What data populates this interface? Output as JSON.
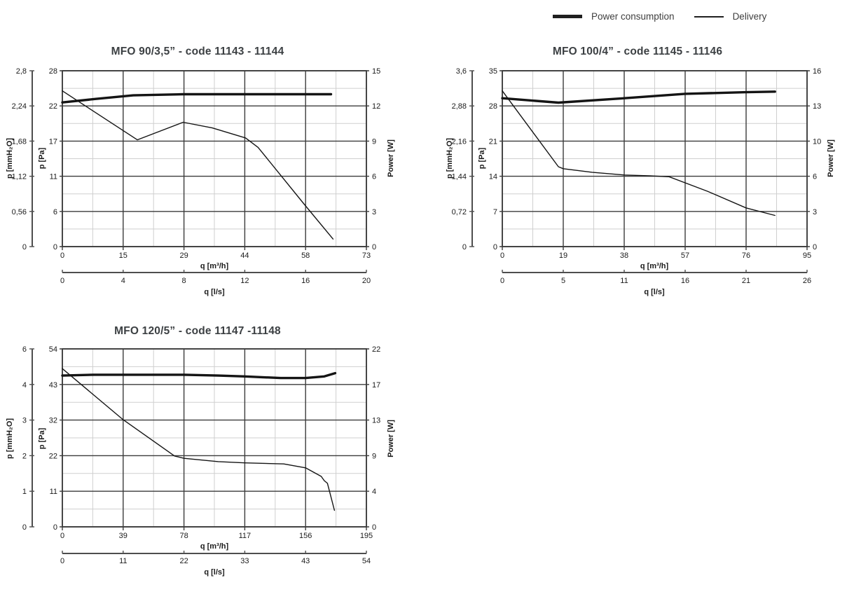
{
  "legend": {
    "items": [
      {
        "label": "Power consumption",
        "style": "thick"
      },
      {
        "label": "Delivery",
        "style": "thin"
      }
    ]
  },
  "colors": {
    "curve": "#141414",
    "grid_major": "#3b3b3b",
    "grid_minor": "#cfcfcf",
    "axis": "#4d4d4d",
    "text": "#1a1a1a",
    "title": "#3c4043"
  },
  "chart_data": [
    {
      "type": "line",
      "title": "MFO 90/3,5” - code 11143 - 11144",
      "x_axes": {
        "m3h": {
          "label": "q [m³/h]",
          "ticks": [
            "0",
            "15",
            "29",
            "44",
            "58",
            "73"
          ],
          "max": 73
        },
        "ls": {
          "label": "q [l/s]",
          "ticks": [
            "0",
            "4",
            "8",
            "12",
            "16",
            "20"
          ],
          "max": 20
        }
      },
      "y_axes": {
        "mmh2o": {
          "label": "p [mmH₂O]",
          "ticks": [
            "0",
            "0,56",
            "1,12",
            "1,68",
            "2,24",
            "2,8"
          ],
          "max": 2.8
        },
        "pa": {
          "label": "p [Pa]",
          "ticks": [
            "0",
            "6",
            "11",
            "17",
            "22",
            "28"
          ],
          "max": 28
        },
        "power": {
          "label": "Power [W]",
          "ticks": [
            "0",
            "3",
            "6",
            "9",
            "12",
            "15"
          ],
          "max": 15
        }
      },
      "series": [
        {
          "name": "Power consumption",
          "y_axis": "power",
          "style": "thick",
          "points": [
            [
              0,
              12.3
            ],
            [
              8,
              12.6
            ],
            [
              17,
              12.9
            ],
            [
              29,
              13.0
            ],
            [
              44,
              13.0
            ],
            [
              58,
              13.0
            ],
            [
              64.5,
              13.0
            ]
          ]
        },
        {
          "name": "Delivery",
          "y_axis": "pa",
          "style": "thin",
          "points": [
            [
              0,
              24.8
            ],
            [
              18,
              17.0
            ],
            [
              29,
              19.8
            ],
            [
              36,
              18.9
            ],
            [
              44,
              17.3
            ],
            [
              47,
              15.8
            ],
            [
              58,
              6.8
            ],
            [
              65,
              1.2
            ]
          ]
        }
      ]
    },
    {
      "type": "line",
      "title": "MFO 100/4” - code 11145 - 11146",
      "x_axes": {
        "m3h": {
          "label": "q [m³/h]",
          "ticks": [
            "0",
            "19",
            "38",
            "57",
            "76",
            "95"
          ],
          "max": 95
        },
        "ls": {
          "label": "q [l/s]",
          "ticks": [
            "0",
            "5",
            "11",
            "16",
            "21",
            "26"
          ],
          "max": 26
        }
      },
      "y_axes": {
        "mmh2o": {
          "label": "p [mmH₂O]",
          "ticks": [
            "0",
            "0,72",
            "1,44",
            "2,16",
            "2,88",
            "3,6"
          ],
          "max": 3.6
        },
        "pa": {
          "label": "p [Pa]",
          "ticks": [
            "0",
            "7",
            "14",
            "21",
            "28",
            "35"
          ],
          "max": 35
        },
        "power": {
          "label": "Power [W]",
          "ticks": [
            "0",
            "3",
            "6",
            "10",
            "13",
            "16"
          ],
          "max": 16
        }
      },
      "series": [
        {
          "name": "Power consumption",
          "y_axis": "power",
          "style": "thick",
          "points": [
            [
              0,
              13.5
            ],
            [
              17.5,
              13.1
            ],
            [
              38,
              13.5
            ],
            [
              57,
              13.9
            ],
            [
              76,
              14.05
            ],
            [
              85,
              14.1
            ]
          ]
        },
        {
          "name": "Delivery",
          "y_axis": "pa",
          "style": "thin",
          "points": [
            [
              0,
              31
            ],
            [
              17.5,
              15.9
            ],
            [
              19,
              15.5
            ],
            [
              28,
              14.8
            ],
            [
              38,
              14.25
            ],
            [
              46,
              14.1
            ],
            [
              52,
              13.9
            ],
            [
              64,
              11.0
            ],
            [
              76,
              7.7
            ],
            [
              85,
              6.2
            ]
          ]
        }
      ]
    },
    {
      "type": "line",
      "title": "MFO 120/5” - code 11147 -11148",
      "x_axes": {
        "m3h": {
          "label": "q [m³/h]",
          "ticks": [
            "0",
            "39",
            "78",
            "117",
            "156",
            "195"
          ],
          "max": 195
        },
        "ls": {
          "label": "q [l/s]",
          "ticks": [
            "0",
            "11",
            "22",
            "33",
            "43",
            "54"
          ],
          "max": 54
        }
      },
      "y_axes": {
        "mmh2o": {
          "label": "p [mmH₂O]",
          "ticks": [
            "0",
            "1",
            "2",
            "3",
            "4",
            "6"
          ],
          "max": 5.5
        },
        "pa": {
          "label": "p [Pa]",
          "ticks": [
            "0",
            "11",
            "22",
            "32",
            "43",
            "54"
          ],
          "max": 54
        },
        "power": {
          "label": "Power [W]",
          "ticks": [
            "0",
            "4",
            "9",
            "13",
            "17",
            "22"
          ],
          "max": 22
        }
      },
      "series": [
        {
          "name": "Power consumption",
          "y_axis": "power",
          "style": "thick",
          "points": [
            [
              0,
              18.7
            ],
            [
              20,
              18.8
            ],
            [
              39,
              18.8
            ],
            [
              78,
              18.8
            ],
            [
              100,
              18.7
            ],
            [
              117,
              18.6
            ],
            [
              140,
              18.4
            ],
            [
              156,
              18.4
            ],
            [
              168,
              18.6
            ],
            [
              175,
              19.0
            ]
          ]
        },
        {
          "name": "Delivery",
          "y_axis": "pa",
          "style": "thin",
          "points": [
            [
              0,
              48
            ],
            [
              39,
              32.5
            ],
            [
              72,
              21.5
            ],
            [
              78,
              20.8
            ],
            [
              100,
              19.8
            ],
            [
              117,
              19.4
            ],
            [
              142,
              19.1
            ],
            [
              156,
              17.9
            ],
            [
              166,
              15.3
            ],
            [
              168,
              14.0
            ],
            [
              170,
              13.2
            ],
            [
              174.5,
              5.0
            ]
          ]
        }
      ]
    }
  ]
}
